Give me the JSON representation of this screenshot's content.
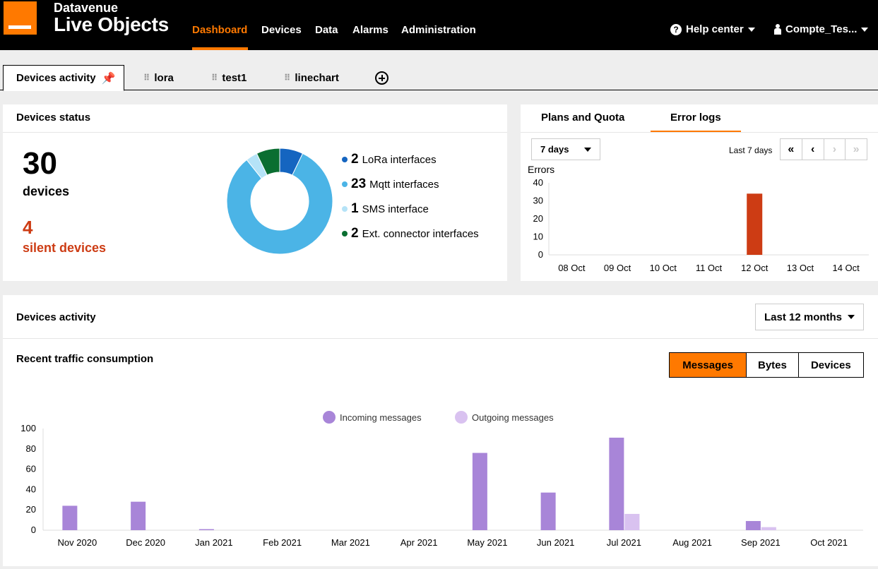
{
  "header": {
    "brand_top": "Datavenue",
    "brand_main": "Live Objects",
    "nav": [
      "Dashboard",
      "Devices",
      "Data",
      "Alarms",
      "Administration"
    ],
    "help": "Help center",
    "user": "Compte_Tes..."
  },
  "tabs": [
    "Devices activity",
    "lora",
    "test1",
    "linechart"
  ],
  "devices_status": {
    "title": "Devices status",
    "count": "30",
    "count_label": "devices",
    "silent": "4",
    "silent_label": "silent devices",
    "legend": [
      {
        "num": "2",
        "label": "LoRa interfaces",
        "value": 2,
        "color": "#1565c0"
      },
      {
        "num": "23",
        "label": "Mqtt interfaces",
        "value": 23,
        "color": "#4bb4e6"
      },
      {
        "num": "1",
        "label": "SMS interface",
        "value": 1,
        "color": "#b5e3f7"
      },
      {
        "num": "2",
        "label": "Ext. connector interfaces",
        "value": 2,
        "color": "#0a6e31"
      }
    ]
  },
  "plans_panel": {
    "tabs": [
      "Plans and Quota",
      "Error logs"
    ],
    "period_select": "7 days",
    "range_text": "Last 7 days",
    "pager": [
      "«",
      "‹",
      "›",
      "»"
    ]
  },
  "activity": {
    "title": "Devices activity",
    "period_select": "Last 12 months",
    "subtitle": "Recent traffic consumption",
    "modes": [
      "Messages",
      "Bytes",
      "Devices"
    ]
  },
  "chart_data": [
    {
      "type": "bar",
      "ylabel": "Errors",
      "categories": [
        "08 Oct",
        "09 Oct",
        "10 Oct",
        "11 Oct",
        "12 Oct",
        "13 Oct",
        "14 Oct"
      ],
      "values": [
        0,
        0,
        0,
        0,
        34,
        0,
        0
      ],
      "ylim": [
        0,
        40
      ],
      "yticks": [
        0,
        10,
        20,
        30,
        40
      ],
      "color": "#cd3c14"
    },
    {
      "type": "bar",
      "categories": [
        "Nov 2020",
        "Dec 2020",
        "Jan 2021",
        "Feb 2021",
        "Mar 2021",
        "Apr 2021",
        "May 2021",
        "Jun 2021",
        "Jul 2021",
        "Aug 2021",
        "Sep 2021",
        "Oct 2021"
      ],
      "series": [
        {
          "name": "Incoming messages",
          "values": [
            24,
            28,
            1,
            0,
            0,
            0,
            76,
            37,
            91,
            0,
            9,
            0
          ],
          "color": "#a885d8"
        },
        {
          "name": "Outgoing messages",
          "values": [
            0,
            0,
            0,
            0,
            0,
            0,
            0,
            0,
            16,
            0,
            3,
            0
          ],
          "color": "#d9c2f0"
        }
      ],
      "ylim": [
        0,
        100
      ],
      "yticks": [
        0,
        20,
        40,
        60,
        80,
        100
      ],
      "legend": "top-center"
    }
  ]
}
